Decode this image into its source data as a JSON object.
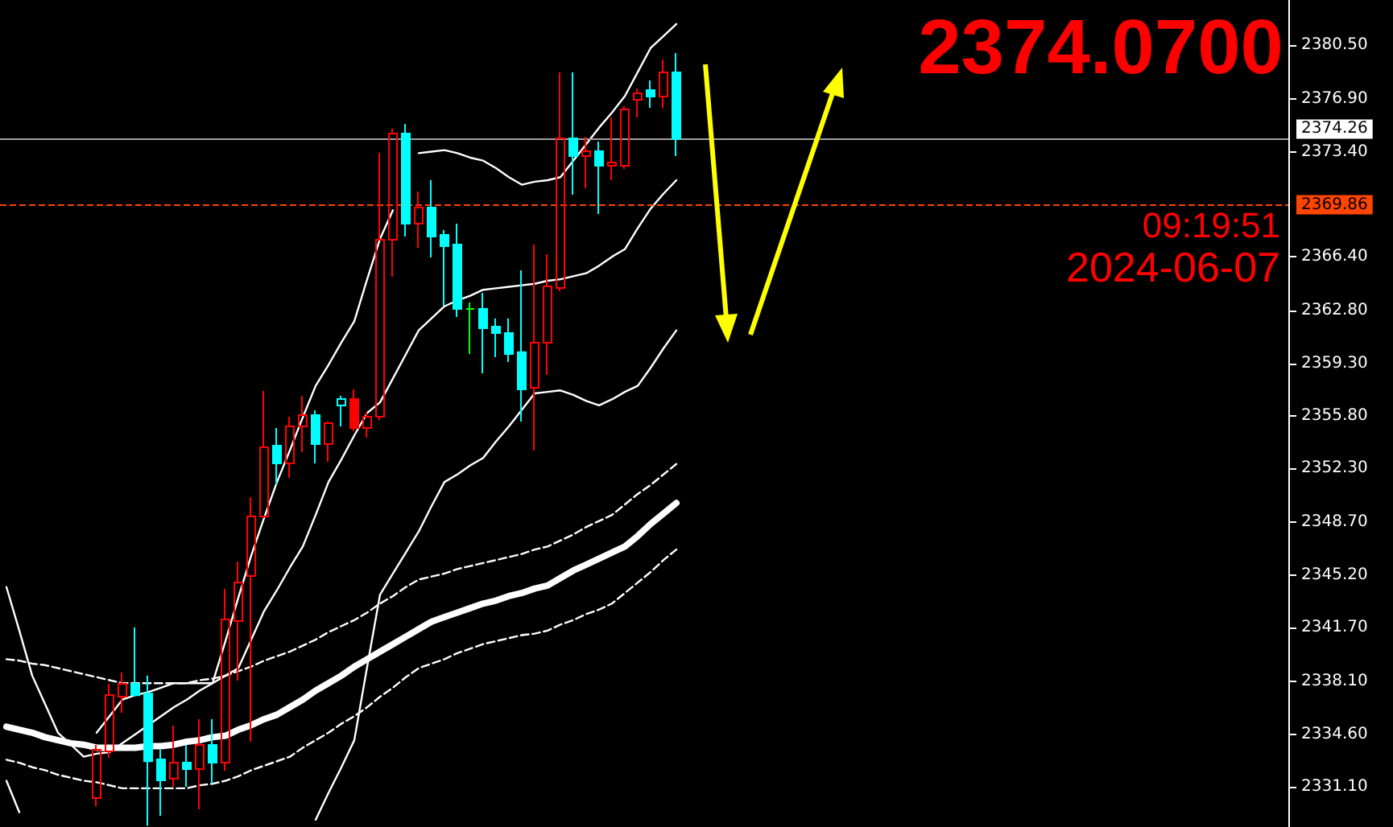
{
  "chart_data": {
    "type": "candlestick",
    "categories": [
      null,
      null,
      null,
      null,
      null,
      null,
      null,
      null,
      null,
      null,
      null,
      null,
      null,
      null,
      null,
      null,
      null,
      null,
      null,
      null,
      null,
      null,
      null,
      null,
      null,
      null,
      null,
      null,
      null,
      null,
      null,
      null,
      null,
      null,
      null,
      null,
      null,
      null,
      null,
      null,
      null,
      null,
      null,
      null,
      null,
      null,
      null,
      null,
      null,
      null,
      null,
      null,
      null,
      null,
      null,
      null,
      null,
      null,
      null,
      null,
      null,
      null,
      null,
      null,
      null,
      null,
      null,
      null,
      null,
      null,
      null,
      null,
      null,
      null,
      null,
      null,
      null,
      null,
      null,
      null,
      null,
      null,
      null,
      null,
      null,
      null,
      null,
      null,
      null,
      null,
      null,
      null,
      null,
      null,
      null,
      null,
      null,
      null,
      null,
      null
    ],
    "ohlc": [
      null,
      null,
      null,
      null,
      null,
      null,
      null,
      [
        2330.35,
        2333.89,
        2329.8,
        2333.56
      ],
      [
        2333.46,
        2337.96,
        2333.03,
        2337.21
      ],
      [
        2337.1,
        2338.71,
        2336.03,
        2337.96
      ],
      [
        2337.96,
        2341.71,
        2337.2,
        2337.2
      ],
      [
        2337.3,
        2338.5,
        2328.5,
        2332.8
      ],
      [
        2332.92,
        2333.56,
        2329.17,
        2331.53
      ],
      [
        2331.64,
        2335.17,
        2331.1,
        2332.71
      ],
      [
        2332.71,
        2333.89,
        2331.1,
        2332.28
      ],
      [
        2332.28,
        2335.6,
        2329.6,
        2333.89
      ],
      [
        2333.89,
        2335.6,
        2331.3,
        2332.71
      ],
      [
        2332.71,
        2344.28,
        2332.17,
        2342.24
      ],
      [
        2342.14,
        2346.1,
        2338.17,
        2344.71
      ],
      [
        2345.14,
        2350.39,
        2334.1,
        2349.1
      ],
      [
        2349.1,
        2357.46,
        2349.0,
        2353.71
      ],
      [
        2353.82,
        2355.0,
        2351.25,
        2352.64
      ],
      [
        2352.64,
        2355.75,
        2351.68,
        2355.1
      ],
      [
        2355.1,
        2357.14,
        2353.39,
        2355.85
      ],
      [
        2355.85,
        2356.17,
        2352.64,
        2353.92
      ],
      [
        2353.92,
        2355.42,
        2352.75,
        2355.32
      ],
      [
        2356.5,
        2357.14,
        2355.1,
        2356.93
      ],
      [
        2356.93,
        2357.57,
        2354.78,
        2355.0
      ],
      [
        2355.0,
        2356.07,
        2354.35,
        2355.75
      ],
      [
        2355.75,
        2373.32,
        2355.53,
        2367.53
      ],
      [
        2367.53,
        2374.93,
        2365.07,
        2374.61
      ],
      [
        2374.61,
        2375.25,
        2367.75,
        2368.6
      ],
      [
        2368.6,
        2370.75,
        2366.99,
        2369.68
      ],
      [
        2369.68,
        2371.5,
        2366.35,
        2367.75
      ],
      [
        2367.86,
        2368.18,
        2363.14,
        2367.1
      ],
      [
        2367.21,
        2368.6,
        2362.39,
        2362.93
      ],
      [
        2362.93,
        2363.36,
        2359.93,
        2362.93
      ],
      [
        2362.93,
        2364.0,
        2358.64,
        2361.64
      ],
      [
        2361.75,
        2362.29,
        2359.71,
        2361.32
      ],
      [
        2361.32,
        2362.29,
        2359.39,
        2359.93
      ],
      [
        2360.04,
        2365.5,
        2355.42,
        2357.57
      ],
      [
        2357.68,
        2367.21,
        2353.5,
        2360.68
      ],
      [
        2360.68,
        2366.57,
        2358.53,
        2364.43
      ],
      [
        2364.32,
        2378.68,
        2364.1,
        2374.29
      ],
      [
        2374.29,
        2378.68,
        2370.54,
        2373.1
      ],
      [
        2373.1,
        2374.39,
        2370.96,
        2373.43
      ],
      [
        2373.43,
        2374.07,
        2369.25,
        2372.46
      ],
      [
        2372.46,
        2375.68,
        2371.5,
        2372.68
      ],
      [
        2372.46,
        2376.43,
        2372.25,
        2376.21
      ],
      [
        2376.86,
        2377.61,
        2375.68,
        2377.29
      ],
      [
        2377.5,
        2378.14,
        2376.32,
        2377.07
      ],
      [
        2377.07,
        2379.54,
        2376.3,
        2378.68
      ],
      [
        2378.68,
        2379.96,
        2373.1,
        2374.26
      ],
      null,
      null,
      null,
      null,
      null,
      null,
      null,
      null,
      null,
      null,
      null,
      null,
      null,
      null,
      null,
      null,
      null,
      null,
      null,
      null,
      null,
      null,
      null,
      null,
      null,
      null,
      null,
      null,
      null,
      null,
      null,
      null,
      null,
      null,
      null,
      null,
      null,
      null,
      null,
      null,
      null,
      null,
      null,
      null,
      null,
      null,
      null
    ],
    "colors": [
      null,
      null,
      null,
      null,
      null,
      null,
      null,
      "#ff0000",
      "#ff0000",
      "#ff0000",
      "#00ffff",
      "#00ffff",
      "#00ffff",
      "#ff0000",
      "#00ffff",
      "#ff0000",
      "#00ffff",
      "#ff0000",
      "#ff0000",
      "#ff0000",
      "#ff0000",
      "#00ffff",
      "#ff0000",
      "#ff0000",
      "#00ffff",
      "#ff0000",
      "#00ffff",
      "#ff0000",
      "#ff0000",
      "#ff0000",
      "#ff0000",
      "#00ffff",
      "#ff0000",
      "#00ffff",
      "#00ffff",
      "#00ffff",
      "#00ff00",
      "#00ffff",
      "#00ffff",
      "#00ffff",
      "#00ffff",
      "#ff0000",
      "#ff0000",
      "#ff0000",
      "#00ffff",
      "#ff0000",
      "#00ffff",
      "#ff0000",
      "#ff0000",
      "#ff0000",
      "#00ffff",
      "#ff0000",
      "#00ffff",
      null,
      null,
      null,
      null,
      null,
      null,
      null,
      null,
      null,
      null,
      null,
      null,
      null,
      null,
      null,
      null,
      null,
      null,
      null,
      null,
      null,
      null,
      null,
      null,
      null,
      null,
      null,
      null,
      null,
      null,
      null,
      null,
      null,
      null,
      null,
      null,
      null,
      null,
      null,
      null,
      null,
      null,
      null,
      null,
      null,
      null,
      null
    ],
    "series": [
      {
        "type": "line",
        "color": "#ffffff",
        "values": [
          2335.1,
          2334.9,
          2334.7,
          2334.4,
          2334.2,
          2334.0,
          2333.9,
          2333.7,
          2333.7,
          2333.7,
          2333.7,
          2333.8,
          2333.8,
          2333.9,
          2334.1,
          2334.2,
          2334.4,
          2334.5,
          2334.9,
          2335.2,
          2335.6,
          2335.9,
          2336.4,
          2336.9,
          2337.5,
          2338.0,
          2338.5,
          2339.1,
          2339.6,
          2340.1,
          2340.6,
          2341.1,
          2341.6,
          2342.1,
          2342.4,
          2342.7,
          2343.0,
          2343.3,
          2343.5,
          2343.8,
          2344.0,
          2344.3,
          2344.5,
          2345.0,
          2345.5,
          2345.9,
          2346.3,
          2346.7,
          2347.1,
          2347.8,
          2348.6,
          2349.3,
          2350.0,
          null,
          null,
          null,
          null,
          null,
          null,
          null,
          null,
          null,
          null,
          null,
          null,
          null,
          null,
          null,
          null,
          null,
          null,
          null,
          null,
          null,
          null,
          null,
          null,
          null,
          null,
          null,
          null,
          null,
          null,
          null,
          null,
          null,
          null,
          null,
          null,
          null,
          null,
          null,
          null,
          null,
          null,
          null,
          null,
          null,
          null,
          null
        ]
      },
      {
        "type": "line",
        "color": "#ffffff",
        "line_style": "dashed",
        "values": [
          2339.6,
          2339.5,
          2339.3,
          2339.2,
          2339.0,
          2338.8,
          2338.6,
          2338.4,
          2338.2,
          2338.0,
          2338.0,
          2338.0,
          2338.0,
          2338.0,
          2338.0,
          2338.2,
          2338.3,
          2338.5,
          2338.8,
          2339.1,
          2339.5,
          2339.8,
          2340.1,
          2340.5,
          2340.9,
          2341.4,
          2341.8,
          2342.2,
          2342.7,
          2343.3,
          2343.8,
          2344.4,
          2344.9,
          2345.1,
          2345.3,
          2345.6,
          2345.8,
          2346.0,
          2346.2,
          2346.4,
          2346.6,
          2346.9,
          2347.1,
          2347.5,
          2347.9,
          2348.4,
          2348.8,
          2349.2,
          2349.9,
          2350.6,
          2351.2,
          2351.9,
          2352.6,
          null,
          null,
          null,
          null,
          null,
          null,
          null,
          null,
          null,
          null,
          null,
          null,
          null,
          null,
          null,
          null,
          null,
          null,
          null,
          null,
          null,
          null,
          null,
          null,
          null,
          null,
          null,
          null,
          null,
          null,
          null,
          null,
          null,
          null,
          null,
          null,
          null,
          null,
          null,
          null,
          null,
          null,
          null,
          null,
          null,
          null,
          null
        ]
      },
      {
        "type": "line",
        "color": "#ffffff",
        "line_style": "dashed",
        "values": [
          2332.9,
          2332.7,
          2332.4,
          2332.2,
          2331.9,
          2331.7,
          2331.5,
          2331.4,
          2331.2,
          2331.0,
          2331.0,
          2331.0,
          2331.0,
          2331.0,
          2331.0,
          2331.2,
          2331.3,
          2331.5,
          2331.8,
          2332.2,
          2332.5,
          2332.8,
          2333.1,
          2333.7,
          2334.2,
          2334.7,
          2335.3,
          2335.8,
          2336.4,
          2337.1,
          2337.7,
          2338.4,
          2339.0,
          2339.3,
          2339.6,
          2340.0,
          2340.3,
          2340.6,
          2340.8,
          2341.0,
          2341.2,
          2341.3,
          2341.5,
          2341.9,
          2342.2,
          2342.6,
          2342.9,
          2343.3,
          2344.0,
          2344.7,
          2345.4,
          2346.2,
          2346.9,
          null,
          null,
          null,
          null,
          null,
          null,
          null,
          null,
          null,
          null,
          null,
          null,
          null,
          null,
          null,
          null,
          null,
          null,
          null,
          null,
          null,
          null,
          null,
          null,
          null,
          null,
          null,
          null,
          null,
          null,
          null,
          null,
          null,
          null,
          null,
          null,
          null,
          null,
          null,
          null,
          null,
          null,
          null,
          null,
          null,
          null,
          null
        ]
      },
      {
        "type": "line",
        "color": "#ffffff",
        "values": [
          2344.4,
          2341.5,
          2338.5,
          2336.6,
          2334.7,
          2333.9,
          2333.1,
          2333.3,
          2333.4,
          2334.0,
          2334.6,
          2335.2,
          2335.8,
          2336.4,
          2336.9,
          2337.5,
          2338.0,
          2340.8,
          2343.7,
          2346.5,
          2349.0,
          2351.4,
          2353.5,
          2355.7,
          2357.8,
          2359.2,
          2360.7,
          2362.1,
          2364.9,
          2367.6,
          2369.5,
          null,
          2373.3,
          2373.4,
          2373.5,
          2373.3,
          2373.0,
          2372.8,
          2372.3,
          2371.7,
          2371.2,
          2371.4,
          2371.5,
          2371.7,
          2372.8,
          2373.9,
          2375.0,
          2376.0,
          2377.1,
          2378.7,
          2380.3,
          2381.1,
          2381.9,
          null,
          null,
          null,
          null,
          null,
          null,
          null,
          null,
          null,
          null,
          null,
          null,
          null,
          null,
          null,
          null,
          null,
          null,
          null,
          null,
          null,
          null,
          null,
          null,
          null,
          null,
          null,
          null,
          null,
          null,
          null,
          null,
          null,
          null,
          null,
          null,
          null,
          null,
          null,
          null,
          null,
          null,
          null,
          null,
          null,
          null,
          null
        ]
      },
      {
        "type": "line",
        "color": "#ffffff",
        "values": [
          null,
          null,
          null,
          null,
          null,
          null,
          null,
          2334.7,
          2335.8,
          2336.9,
          2337.2,
          2337.4,
          2337.7,
          2338.0,
          2338.0,
          2338.0,
          2338.0,
          2338.5,
          2339.0,
          2340.9,
          2342.8,
          2344.2,
          2345.7,
          2347.1,
          2349.2,
          2351.4,
          2352.9,
          2354.5,
          2356.0,
          2356.7,
          2358.3,
          2359.9,
          2361.5,
          2362.3,
          2363.1,
          2363.5,
          2363.8,
          2364.2,
          2364.3,
          2364.4,
          2364.5,
          2364.6,
          2364.8,
          2364.9,
          2365.1,
          2365.3,
          2365.8,
          2366.4,
          2366.9,
          2368.3,
          2369.6,
          2370.6,
          2371.5,
          null,
          null,
          null,
          null,
          null,
          null,
          null,
          null,
          null,
          null,
          null,
          null,
          null,
          null,
          null,
          null,
          null,
          null,
          null,
          null,
          null,
          null,
          null,
          null,
          null,
          null,
          null,
          null,
          null,
          null,
          null,
          null,
          null,
          null,
          null,
          null,
          null,
          null,
          null,
          null,
          null,
          null,
          null,
          null,
          null,
          null,
          null
        ]
      },
      {
        "type": "line",
        "color": "#ffffff",
        "values": [
          2331.5,
          2329.4,
          null,
          null,
          null,
          null,
          null,
          null,
          null,
          null,
          null,
          null,
          null,
          null,
          null,
          null,
          null,
          null,
          null,
          null,
          null,
          null,
          null,
          null,
          2328.9,
          2330.7,
          2332.4,
          2334.2,
          2339.1,
          2343.9,
          2345.3,
          2346.7,
          2348.1,
          2349.8,
          2351.4,
          2351.9,
          2352.5,
          2353.0,
          2354.1,
          2355.1,
          2356.2,
          2357.3,
          2357.4,
          2357.5,
          2357.2,
          2356.8,
          2356.5,
          2356.9,
          2357.4,
          2357.8,
          2359.0,
          2360.3,
          2361.5,
          null,
          null,
          null,
          null,
          null,
          null,
          null,
          null,
          null,
          null,
          null,
          null,
          null,
          null,
          null,
          null,
          null,
          null,
          null,
          null,
          null,
          null,
          null,
          null,
          null,
          null,
          null,
          null,
          null,
          null,
          null,
          null,
          null,
          null,
          null,
          null,
          null,
          null,
          null,
          null,
          null,
          null,
          null,
          null,
          null,
          null,
          null
        ]
      }
    ],
    "ylim": [
      2328.42,
      2383.5
    ],
    "yticks": [
      {
        "value": 2331.1,
        "label": "2331.10"
      },
      {
        "value": 2334.6,
        "label": "2334.60"
      },
      {
        "value": 2338.1,
        "label": "2338.10"
      },
      {
        "value": 2341.7,
        "label": "2341.70"
      },
      {
        "value": 2345.2,
        "label": "2345.20"
      },
      {
        "value": 2348.7,
        "label": "2348.70"
      },
      {
        "value": 2352.3,
        "label": "2352.30"
      },
      {
        "value": 2355.8,
        "label": "2355.80"
      },
      {
        "value": 2359.3,
        "label": "2359.30"
      },
      {
        "value": 2362.8,
        "label": "2362.80"
      },
      {
        "value": 2366.4,
        "label": "2366.40"
      },
      {
        "value": 2373.4,
        "label": "2373.40"
      },
      {
        "value": 2376.9,
        "label": "2376.90"
      },
      {
        "value": 2380.5,
        "label": "2380.50"
      }
    ],
    "ref_lines": [
      {
        "axis": "y",
        "value": 2374.26,
        "label": "2374.26",
        "color": "#a0a0a0",
        "line_style": "solid"
      },
      {
        "axis": "y",
        "value": 2369.86,
        "label": "2369.86",
        "color": "#ff4500",
        "line_style": "dashed"
      }
    ],
    "annotations": [
      "2374.0700",
      "09:19:51",
      "2024-06-07"
    ],
    "tick_labels": "y",
    "grid": false
  }
}
